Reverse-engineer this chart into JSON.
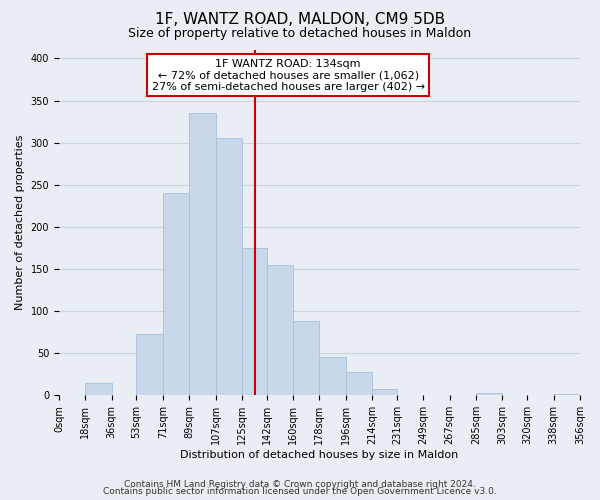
{
  "title": "1F, WANTZ ROAD, MALDON, CM9 5DB",
  "subtitle": "Size of property relative to detached houses in Maldon",
  "xlabel": "Distribution of detached houses by size in Maldon",
  "ylabel": "Number of detached properties",
  "bar_color": "#c8d8ea",
  "bar_edge_color": "#a8c0d6",
  "bin_edges": [
    0,
    18,
    36,
    53,
    71,
    89,
    107,
    125,
    142,
    160,
    178,
    196,
    214,
    231,
    249,
    267,
    285,
    303,
    320,
    338,
    356
  ],
  "bin_labels": [
    "0sqm",
    "18sqm",
    "36sqm",
    "53sqm",
    "71sqm",
    "89sqm",
    "107sqm",
    "125sqm",
    "142sqm",
    "160sqm",
    "178sqm",
    "196sqm",
    "214sqm",
    "231sqm",
    "249sqm",
    "267sqm",
    "285sqm",
    "303sqm",
    "320sqm",
    "338sqm",
    "356sqm"
  ],
  "bar_heights": [
    0,
    15,
    0,
    73,
    240,
    335,
    305,
    175,
    155,
    88,
    45,
    28,
    7,
    0,
    0,
    0,
    3,
    0,
    0,
    2
  ],
  "vline_x": 134,
  "vline_color": "#cc0000",
  "annotation_title": "1F WANTZ ROAD: 134sqm",
  "annotation_line1": "← 72% of detached houses are smaller (1,062)",
  "annotation_line2": "27% of semi-detached houses are larger (402) →",
  "ylim": [
    0,
    410
  ],
  "yticks": [
    0,
    50,
    100,
    150,
    200,
    250,
    300,
    350,
    400
  ],
  "footer1": "Contains HM Land Registry data © Crown copyright and database right 2024.",
  "footer2": "Contains public sector information licensed under the Open Government Licence v3.0.",
  "background_color": "#e8eef4",
  "plot_background": "#e8eef4",
  "grid_color": "#c8d4de",
  "title_fontsize": 11,
  "subtitle_fontsize": 9,
  "axis_label_fontsize": 8,
  "tick_fontsize": 7,
  "annotation_fontsize": 8,
  "footer_fontsize": 6.5
}
